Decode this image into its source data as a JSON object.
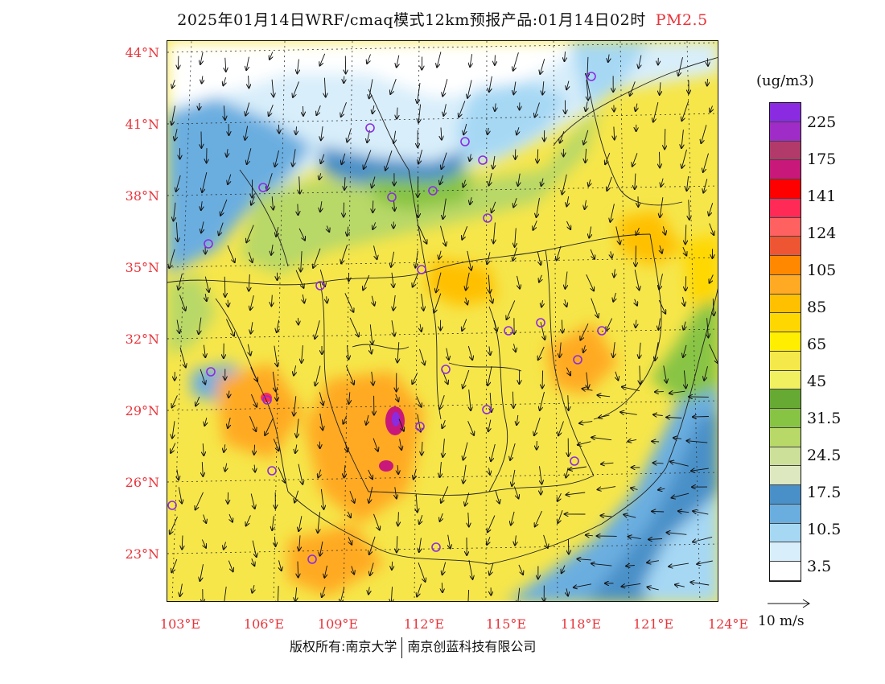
{
  "title": {
    "main": "2025年01月14日WRF/cmaq模式12km预报产品:01月14日02时",
    "pollutant": "PM2.5"
  },
  "axes": {
    "lat_labels": [
      "44°N",
      "41°N",
      "38°N",
      "35°N",
      "32°N",
      "29°N",
      "26°N",
      "23°N"
    ],
    "lon_labels": [
      "103°E",
      "106°E",
      "109°E",
      "112°E",
      "115°E",
      "118°E",
      "121°E",
      "124°E"
    ]
  },
  "colorbar": {
    "unit": "(ug/m3)",
    "labels": [
      "225",
      "175",
      "141",
      "124",
      "105",
      "85",
      "65",
      "45",
      "31.5",
      "24.5",
      "17.5",
      "10.5",
      "3.5"
    ],
    "colors": [
      "#8a2be2",
      "#a02cc8",
      "#b23a6a",
      "#c8187a",
      "#ff0000",
      "#ff2a55",
      "#ff6060",
      "#ee5533",
      "#ff8800",
      "#ffaa22",
      "#ffc000",
      "#ffd700",
      "#ffee00",
      "#f4e84a",
      "#f0f060",
      "#66aa33",
      "#88c444",
      "#b8d868",
      "#cde09a",
      "#dde8c0",
      "#4a90c8",
      "#6aaee0",
      "#a6d8f4",
      "#d8eefa",
      "#ffffff"
    ]
  },
  "wind_scale": {
    "label": "10 m/s"
  },
  "footer": {
    "left": "版权所有:南京大学",
    "right": "南京创蓝科技有限公司"
  }
}
